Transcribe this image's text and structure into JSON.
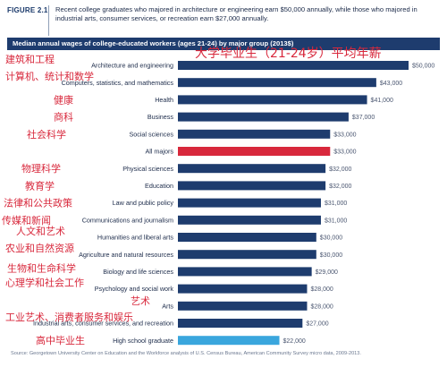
{
  "header": {
    "figure_label": "FIGURE 2.1",
    "caption": "Recent college graduates who majored in architecture or engineering earn $50,000 annually, while those who majored in industrial arts, consumer services, or recreation earn $27,000 annually."
  },
  "overlay_title": "大学毕业生（21-24岁）平均年薪",
  "source": "Source: Georgetown University Center on Education and the Workforce analysis of U.S. Census Bureau, American Community Survey micro data, 2009-2013.",
  "colors": {
    "bar": "#1e3c6e",
    "highlight": "#d8283c",
    "high_school": "#3aa6dd",
    "annotation": "#d8283c",
    "banner": "#1e3c6e"
  },
  "chart_data": {
    "type": "bar",
    "orientation": "horizontal",
    "title": "Median annual wages of college-educated workers (ages 21-24) by major group (2013$)",
    "categories": [
      "Architecture and engineering",
      "Computers, statistics, and mathematics",
      "Health",
      "Business",
      "Social sciences",
      "All majors",
      "Physical sciences",
      "Education",
      "Law and public policy",
      "Communications and journalism",
      "Humanities and liberal arts",
      "Agriculture and natural resources",
      "Biology and life sciences",
      "Psychology and social work",
      "Arts",
      "Industrial arts, consumer services, and recreation",
      "High school graduate"
    ],
    "values": [
      50000,
      43000,
      41000,
      37000,
      33000,
      33000,
      32000,
      32000,
      31000,
      31000,
      30000,
      30000,
      29000,
      28000,
      28000,
      27000,
      22000
    ],
    "value_labels": [
      "$50,000",
      "$43,000",
      "$41,000",
      "$37,000",
      "$33,000",
      "$33,000",
      "$32,000",
      "$32,000",
      "$31,000",
      "$31,000",
      "$30,000",
      "$30,000",
      "$29,000",
      "$28,000",
      "$28,000",
      "$27,000",
      "$22,000"
    ],
    "annotations": [
      "建筑和工程",
      "计算机、统计和数学",
      "健康",
      "商科",
      "社会科学",
      "",
      "物理科学",
      "教育学",
      "法律和公共政策",
      "传媒和新闻",
      "人文和艺术",
      "农业和自然资源",
      "生物和生命科学",
      "心理学和社会工作",
      "艺术",
      "工业艺术、消费者服务和娱乐",
      "高中毕业生"
    ],
    "highlight_index": 5,
    "high_school_index": 16,
    "xlim": [
      0,
      50000
    ],
    "grid": false,
    "legend": "none"
  }
}
